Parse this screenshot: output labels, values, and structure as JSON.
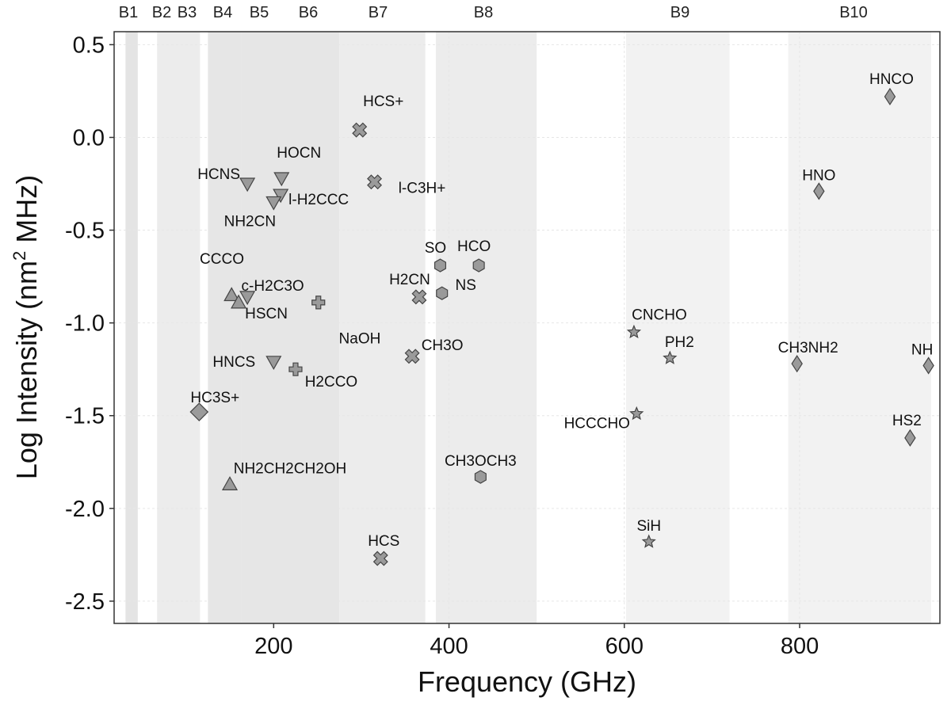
{
  "chart_data": {
    "type": "scatter",
    "title": "",
    "xlabel": "Frequency (GHz)",
    "ylabel_prefix": "Log Intensity (nm",
    "ylabel_sup": "2",
    "ylabel_suffix": " MHz)",
    "xlim": [
      18,
      960
    ],
    "ylim": [
      -2.62,
      0.57
    ],
    "xticks": [
      200,
      400,
      600,
      800
    ],
    "yticks": [
      0.5,
      0.0,
      -0.5,
      -1.0,
      -1.5,
      -2.0,
      -2.5
    ],
    "ytick_labels": [
      "0.5",
      "0.0",
      "-0.5",
      "-1.0",
      "-1.5",
      "-2.0",
      "-2.5"
    ],
    "grid": true,
    "bands": [
      {
        "label": "B1",
        "range": [
          31,
          45
        ],
        "shade": "#e4e4e4"
      },
      {
        "label": "B2",
        "range": [
          67,
          90
        ],
        "shade": "#ececec"
      },
      {
        "label": "B3",
        "range": [
          84,
          116
        ],
        "shade": "#ececec"
      },
      {
        "label": "B4",
        "range": [
          125,
          163
        ],
        "shade": "#e6e6e6"
      },
      {
        "label": "B5",
        "range": [
          163,
          211
        ],
        "shade": "#e6e6e6"
      },
      {
        "label": "B6",
        "range": [
          211,
          275
        ],
        "shade": "#e6e6e6"
      },
      {
        "label": "B7",
        "range": [
          275,
          373
        ],
        "shade": "#ececec"
      },
      {
        "label": "B8",
        "range": [
          385,
          500
        ],
        "shade": "#ececec"
      },
      {
        "label": "B9",
        "range": [
          602,
          720
        ],
        "shade": "#f2f2f2"
      },
      {
        "label": "B10",
        "range": [
          787,
          950
        ],
        "shade": "#f2f2f2"
      }
    ],
    "points": [
      {
        "label": "HCS+",
        "x": 298,
        "y": 0.04,
        "marker": "x",
        "dx": 30,
        "dy": -36
      },
      {
        "label": "HOCN",
        "x": 209,
        "y": -0.22,
        "marker": "tri_down",
        "dx": 22,
        "dy": -32
      },
      {
        "label": "HCNS",
        "x": 170,
        "y": -0.25,
        "marker": "tri_down",
        "dx": -36,
        "dy": -12
      },
      {
        "label": "l-H2CCC",
        "x": 208,
        "y": -0.31,
        "marker": "tri_down",
        "dx": 48,
        "dy": 6
      },
      {
        "label": "NH2CN",
        "x": 200,
        "y": -0.35,
        "marker": "tri_down",
        "dx": -30,
        "dy": 24
      },
      {
        "label": "l-C3H+",
        "x": 315,
        "y": -0.24,
        "marker": "x",
        "dx": 60,
        "dy": 8
      },
      {
        "label": "CCCO",
        "x": 150,
        "y": -0.63,
        "marker": "none",
        "dx": -10,
        "dy": 6
      },
      {
        "label": "SO",
        "x": 390,
        "y": -0.69,
        "marker": "hex",
        "dx": -6,
        "dy": -22
      },
      {
        "label": "HCO",
        "x": 434,
        "y": -0.69,
        "marker": "hex",
        "dx": -6,
        "dy": -24
      },
      {
        "label": "c-H2C3O",
        "x": 170,
        "y": -0.86,
        "marker": "tri_down",
        "dx": 32,
        "dy": -14
      },
      {
        "label": "H2CN",
        "x": 366,
        "y": -0.86,
        "marker": "x",
        "dx": -12,
        "dy": -22
      },
      {
        "label": "NS",
        "x": 392,
        "y": -0.84,
        "marker": "hex",
        "dx": 30,
        "dy": -10
      },
      {
        "label": "",
        "x": 152,
        "y": -0.85,
        "marker": "tri_up",
        "dx": 0,
        "dy": 0
      },
      {
        "label": "HSCN",
        "x": 160,
        "y": -0.89,
        "marker": "tri_up",
        "dx": 35,
        "dy": 14
      },
      {
        "label": "",
        "x": 251,
        "y": -0.89,
        "marker": "plus",
        "dx": 0,
        "dy": 0
      },
      {
        "label": "CNCHO",
        "x": 611,
        "y": -1.05,
        "marker": "star",
        "dx": 32,
        "dy": -22
      },
      {
        "label": "NaOH",
        "x": 253,
        "y": -1.17,
        "marker": "none",
        "dx": 50,
        "dy": -20
      },
      {
        "label": "CH3O",
        "x": 358,
        "y": -1.18,
        "marker": "x",
        "dx": 38,
        "dy": -14
      },
      {
        "label": "PH2",
        "x": 652,
        "y": -1.19,
        "marker": "star",
        "dx": 12,
        "dy": -20
      },
      {
        "label": "HNCS",
        "x": 200,
        "y": -1.21,
        "marker": "tri_down",
        "dx": -50,
        "dy": 0
      },
      {
        "label": "H2CCO",
        "x": 225,
        "y": -1.25,
        "marker": "plus",
        "dx": 45,
        "dy": 16
      },
      {
        "label": "CH3NH2",
        "x": 797,
        "y": -1.22,
        "marker": "diamond",
        "dx": 14,
        "dy": -20
      },
      {
        "label": "NH",
        "x": 947,
        "y": -1.23,
        "marker": "diamond",
        "dx": -8,
        "dy": -20
      },
      {
        "label": "HC3S+",
        "x": 115,
        "y": -1.48,
        "marker": "diamond_big",
        "dx": 20,
        "dy": -18
      },
      {
        "label": "HCCCHO",
        "x": 614,
        "y": -1.49,
        "marker": "star",
        "dx": -50,
        "dy": 12
      },
      {
        "label": "HS2",
        "x": 926,
        "y": -1.62,
        "marker": "diamond",
        "dx": -4,
        "dy": -22
      },
      {
        "label": "NH2CH2CH2OH",
        "x": 150,
        "y": -1.87,
        "marker": "tri_up",
        "dx": 76,
        "dy": -20
      },
      {
        "label": "CH3OCH3",
        "x": 436,
        "y": -1.83,
        "marker": "hex",
        "dx": 0,
        "dy": -20
      },
      {
        "label": "SiH",
        "x": 628,
        "y": -2.18,
        "marker": "star",
        "dx": 0,
        "dy": -20
      },
      {
        "label": "HCS",
        "x": 322,
        "y": -2.27,
        "marker": "x",
        "dx": 4,
        "dy": -22
      },
      {
        "label": "HNO",
        "x": 822,
        "y": -0.29,
        "marker": "diamond",
        "dx": 0,
        "dy": -20
      },
      {
        "label": "HNCO",
        "x": 903,
        "y": 0.22,
        "marker": "diamond",
        "dx": 2,
        "dy": -22
      }
    ]
  }
}
